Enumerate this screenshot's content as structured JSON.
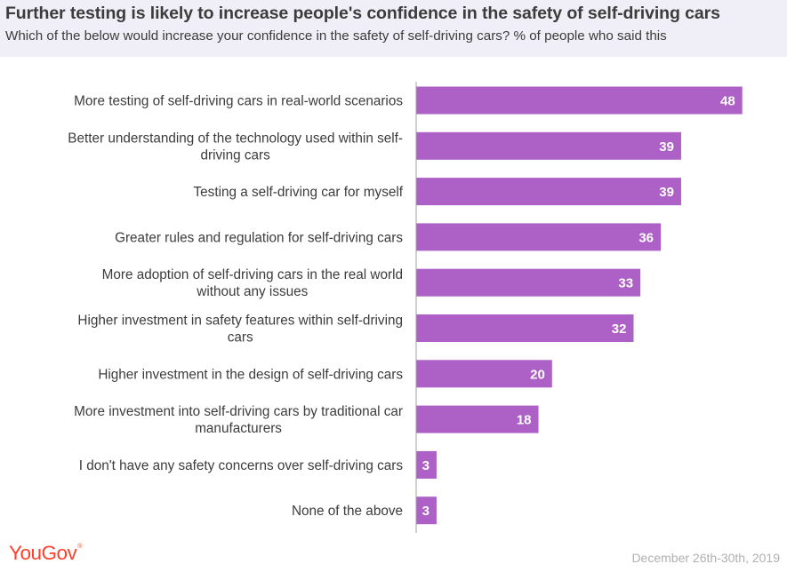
{
  "header": {
    "title": "Further testing is likely to increase people's confidence in the safety of self-driving cars",
    "subtitle": "Which of the below would increase your confidence in the safety of self-driving cars? % of people who said this"
  },
  "footer": {
    "logo": "YouGov",
    "date": "December 26th-30th, 2019"
  },
  "colors": {
    "bar": "#ad60c6",
    "bar_label": "#ffffff",
    "axis": "#a0a0a0",
    "category_text": "#3c3c3c",
    "header_bg": "#f0eef6",
    "logo": "#ff412c"
  },
  "chart_data": {
    "type": "bar",
    "orientation": "horizontal",
    "categories": [
      [
        "More testing of self-driving cars in real-world scenarios"
      ],
      [
        "Better understanding of the technology used within self-",
        "driving cars"
      ],
      [
        "Testing a self-driving car for myself"
      ],
      [
        "Greater rules and regulation for self-driving cars"
      ],
      [
        "More adoption of self-driving cars in the real world",
        "without any issues"
      ],
      [
        "Higher investment in safety features within self-driving",
        "cars"
      ],
      [
        "Higher investment in the design of self-driving cars"
      ],
      [
        "More investment into self-driving cars by traditional car",
        "manufacturers"
      ],
      [
        "I don't have any safety concerns over self-driving cars"
      ],
      [
        "None of the above"
      ]
    ],
    "values": [
      48,
      39,
      39,
      36,
      33,
      32,
      20,
      18,
      3,
      3
    ],
    "xlim": [
      0,
      50
    ],
    "grid": false
  }
}
